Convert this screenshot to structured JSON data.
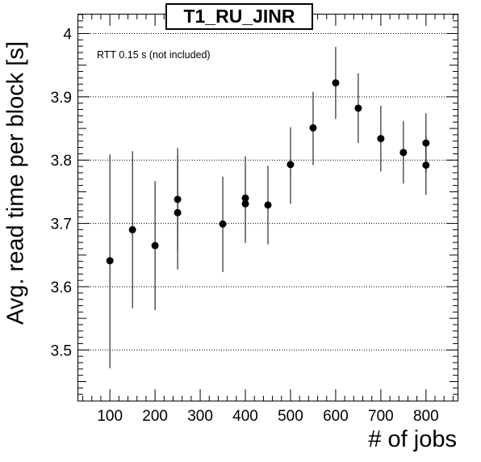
{
  "chart_data": {
    "type": "scatter",
    "title": "T1_RU_JINR",
    "annotation": "RTT 0.15 s (not included)",
    "xlabel": "# of jobs",
    "ylabel": "Avg. read time per block [s]",
    "xlim": [
      30,
      870
    ],
    "ylim": [
      3.42,
      4.03
    ],
    "xticks": [
      100,
      200,
      300,
      400,
      500,
      600,
      700,
      800
    ],
    "yticks": [
      3.5,
      3.6,
      3.7,
      3.8,
      3.9,
      4.0
    ],
    "ytick_labels": [
      "3.5",
      "3.6",
      "3.7",
      "3.8",
      "3.9",
      "4"
    ],
    "grid": "horizontal dotted",
    "points": [
      {
        "x": 100,
        "y": 3.641,
        "ylo": 3.471,
        "yhi": 3.809
      },
      {
        "x": 150,
        "y": 3.69,
        "ylo": 3.566,
        "yhi": 3.814
      },
      {
        "x": 200,
        "y": 3.665,
        "ylo": 3.563,
        "yhi": 3.767
      },
      {
        "x": 250,
        "y": 3.738,
        "ylo": 3.657,
        "yhi": 3.819
      },
      {
        "x": 250,
        "y": 3.717,
        "ylo": 3.627,
        "yhi": 3.806
      },
      {
        "x": 350,
        "y": 3.699,
        "ylo": 3.623,
        "yhi": 3.774
      },
      {
        "x": 400,
        "y": 3.74,
        "ylo": 3.674,
        "yhi": 3.806
      },
      {
        "x": 400,
        "y": 3.731,
        "ylo": 3.669,
        "yhi": 3.793
      },
      {
        "x": 450,
        "y": 3.729,
        "ylo": 3.667,
        "yhi": 3.791
      },
      {
        "x": 500,
        "y": 3.793,
        "ylo": 3.731,
        "yhi": 3.852
      },
      {
        "x": 550,
        "y": 3.851,
        "ylo": 3.792,
        "yhi": 3.908
      },
      {
        "x": 600,
        "y": 3.922,
        "ylo": 3.865,
        "yhi": 3.979
      },
      {
        "x": 650,
        "y": 3.882,
        "ylo": 3.827,
        "yhi": 3.937
      },
      {
        "x": 700,
        "y": 3.834,
        "ylo": 3.782,
        "yhi": 3.886
      },
      {
        "x": 750,
        "y": 3.812,
        "ylo": 3.763,
        "yhi": 3.862
      },
      {
        "x": 800,
        "y": 3.827,
        "ylo": 3.78,
        "yhi": 3.874
      },
      {
        "x": 800,
        "y": 3.792,
        "ylo": 3.745,
        "yhi": 3.838
      }
    ]
  }
}
